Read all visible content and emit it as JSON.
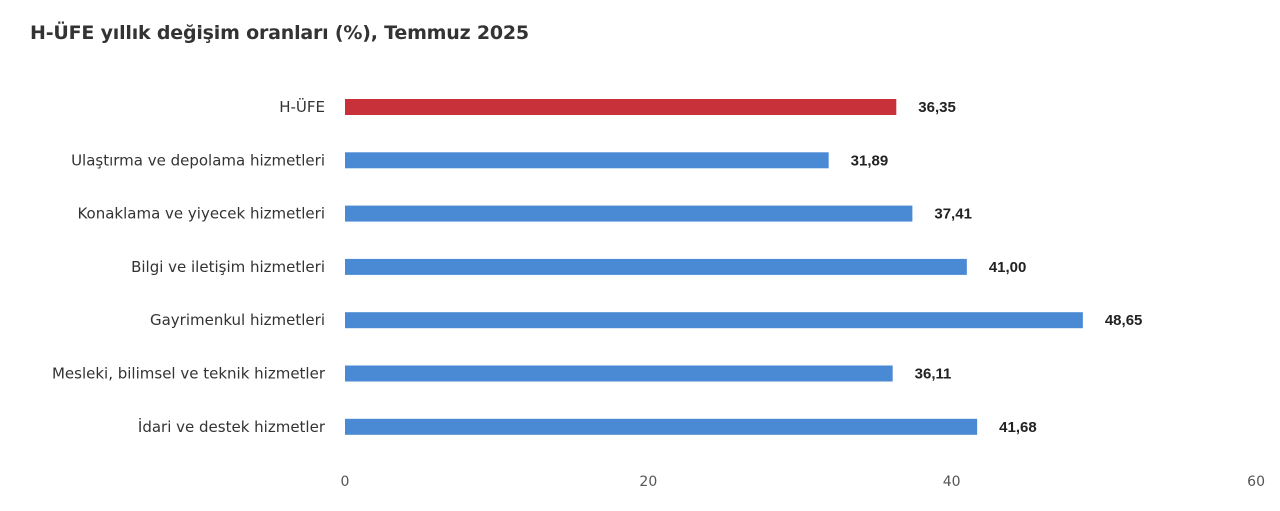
{
  "title": "H-ÜFE yıllık değişim oranları (%), Temmuz 2025",
  "colors": {
    "highlight": "#c8303a",
    "bar": "#4a8ad4",
    "axis_text": "#555555"
  },
  "chart_data": {
    "type": "bar",
    "orientation": "horizontal",
    "title": "H-ÜFE yıllık değişim oranları (%), Temmuz 2025",
    "categories": [
      "H-ÜFE",
      "Ulaştırma ve depolama hizmetleri",
      "Konaklama ve yiyecek hizmetleri",
      "Bilgi ve iletişim hizmetleri",
      "Gayrimenkul hizmetleri",
      "Mesleki, bilimsel ve teknik hizmetler",
      "İdari ve destek hizmetler"
    ],
    "values": [
      36.35,
      31.89,
      37.41,
      41.0,
      48.65,
      36.11,
      41.68
    ],
    "value_labels": [
      "36,35",
      "31,89",
      "37,41",
      "41,00",
      "48,65",
      "36,11",
      "41,68"
    ],
    "highlight_index": 0,
    "xlim": [
      0,
      60
    ],
    "ticks": [
      0,
      20,
      40,
      60
    ],
    "xlabel": "",
    "ylabel": "",
    "grid": false,
    "legend": "none"
  }
}
